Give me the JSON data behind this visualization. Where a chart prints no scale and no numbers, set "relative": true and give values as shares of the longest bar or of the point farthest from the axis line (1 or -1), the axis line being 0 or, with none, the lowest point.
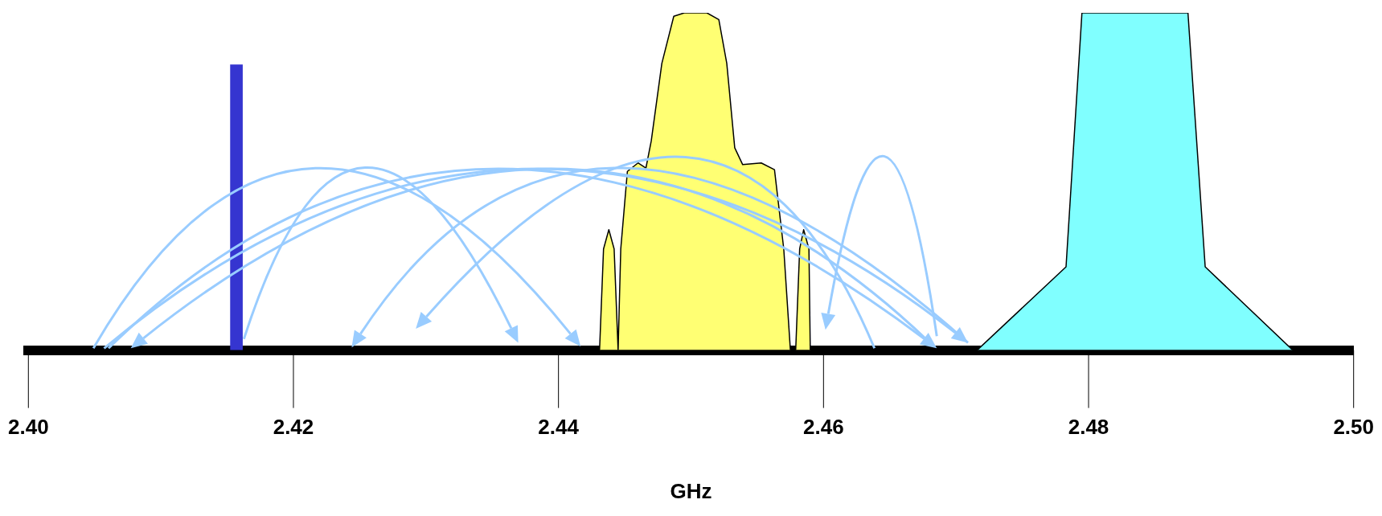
{
  "chart_data": {
    "type": "area",
    "xlabel": "GHz",
    "relative": true,
    "xlim": [
      2.4,
      2.5
    ],
    "xticks": [
      {
        "value": 2.4,
        "label": "2.40"
      },
      {
        "value": 2.42,
        "label": "2.42"
      },
      {
        "value": 2.44,
        "label": "2.44"
      },
      {
        "value": 2.46,
        "label": "2.46"
      },
      {
        "value": 2.48,
        "label": "2.48"
      },
      {
        "value": 2.5,
        "label": "2.50"
      }
    ],
    "series": [
      {
        "type": "bar",
        "color": "#3535d0",
        "x": [
          2.4157
        ],
        "values": [
          0.846
        ]
      },
      {
        "color": "#ffff73",
        "x": [
          2.4431,
          2.4434,
          2.4438,
          2.4442,
          2.4445,
          2.4447,
          2.4452,
          2.446,
          2.4466,
          2.447,
          2.4478,
          2.4487,
          2.4495,
          2.4512,
          2.4521,
          2.4527,
          2.4533,
          2.4539,
          2.4553,
          2.4563,
          2.457,
          2.4575,
          2.4579,
          2.4582,
          2.4585,
          2.4589,
          2.459
        ],
        "values": [
          0,
          0.3,
          0.357,
          0.3,
          0,
          0.3,
          0.53,
          0.555,
          0.54,
          0.62,
          0.85,
          0.99,
          1,
          1,
          0.98,
          0.85,
          0.6,
          0.55,
          0.555,
          0.535,
          0.3,
          0,
          0,
          0.3,
          0.357,
          0.3,
          0
        ]
      },
      {
        "color": "#80ffff",
        "x": [
          2.4716,
          2.4783,
          2.4795,
          2.4875,
          2.4888,
          2.4954
        ],
        "values": [
          0,
          0.247,
          1,
          1,
          0.247,
          0
        ]
      }
    ]
  }
}
